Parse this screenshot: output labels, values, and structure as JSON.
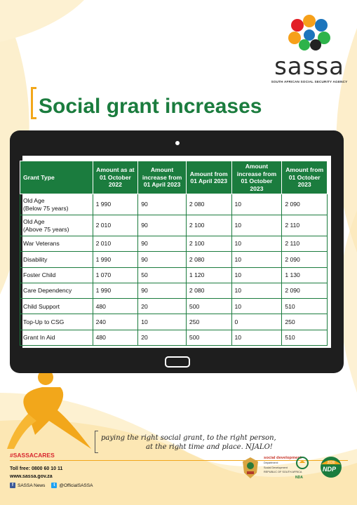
{
  "brand": {
    "name": "sassa",
    "full_name": "SOUTH AFRICAN SOCIAL SECURITY AGENCY",
    "accent": "#1b7c3e",
    "gold": "#f2a71b"
  },
  "title": "Social grant increases",
  "table": {
    "headers": [
      "Grant Type",
      "Amount as at 01 October 2022",
      "Amount increase from 01 April 2023",
      "Amount from 01 April 2023",
      "Amount increase from 01 October 2023",
      "Amount from 01 October 2023"
    ],
    "rows": [
      {
        "grant": "Old Age",
        "grant_sub": "(Below 75 years)",
        "values": [
          "1 990",
          "90",
          "2 080",
          "10",
          "2 090"
        ]
      },
      {
        "grant": "Old Age",
        "grant_sub": "(Above 75 years)",
        "values": [
          "2 010",
          "90",
          "2 100",
          "10",
          "2 110"
        ]
      },
      {
        "grant": "War Veterans",
        "grant_sub": "",
        "values": [
          "2 010",
          "90",
          "2 100",
          "10",
          "2 110"
        ]
      },
      {
        "grant": "Disability",
        "grant_sub": "",
        "values": [
          "1 990",
          "90",
          "2 080",
          "10",
          "2 090"
        ]
      },
      {
        "grant": "Foster Child",
        "grant_sub": "",
        "values": [
          "1 070",
          "50",
          "1 120",
          "10",
          "1 130"
        ]
      },
      {
        "grant": "Care Dependency",
        "grant_sub": "",
        "values": [
          "1 990",
          "90",
          "2 080",
          "10",
          "2 090"
        ]
      },
      {
        "grant": "Child Support",
        "grant_sub": "",
        "values": [
          "480",
          "20",
          "500",
          "10",
          "510"
        ]
      },
      {
        "grant": "Top-Up to CSG",
        "grant_sub": "",
        "values": [
          "240",
          "10",
          "250",
          "0",
          "250"
        ]
      },
      {
        "grant": "Grant In Aid",
        "grant_sub": "",
        "values": [
          "480",
          "20",
          "500",
          "10",
          "510"
        ]
      }
    ]
  },
  "tagline": {
    "line1": "paying the right social grant, to the right person,",
    "line2": "at the right time and place. NJALO!"
  },
  "footer": {
    "hashtag": "#SASSACARES",
    "tollfree": "Toll free: 0800 60 10 11",
    "website": "www.sassa.gov.za",
    "facebook": "SASSA News",
    "twitter": "@OfficialSASSA"
  },
  "partners": {
    "dsd_title": "social development",
    "dsd_sub1": "Department:",
    "dsd_sub2": "Social Development",
    "dsd_sub3": "REPUBLIC OF SOUTH AFRICA",
    "nda": "NDA",
    "ndp": "NDP",
    "ndp_year": "2030"
  }
}
